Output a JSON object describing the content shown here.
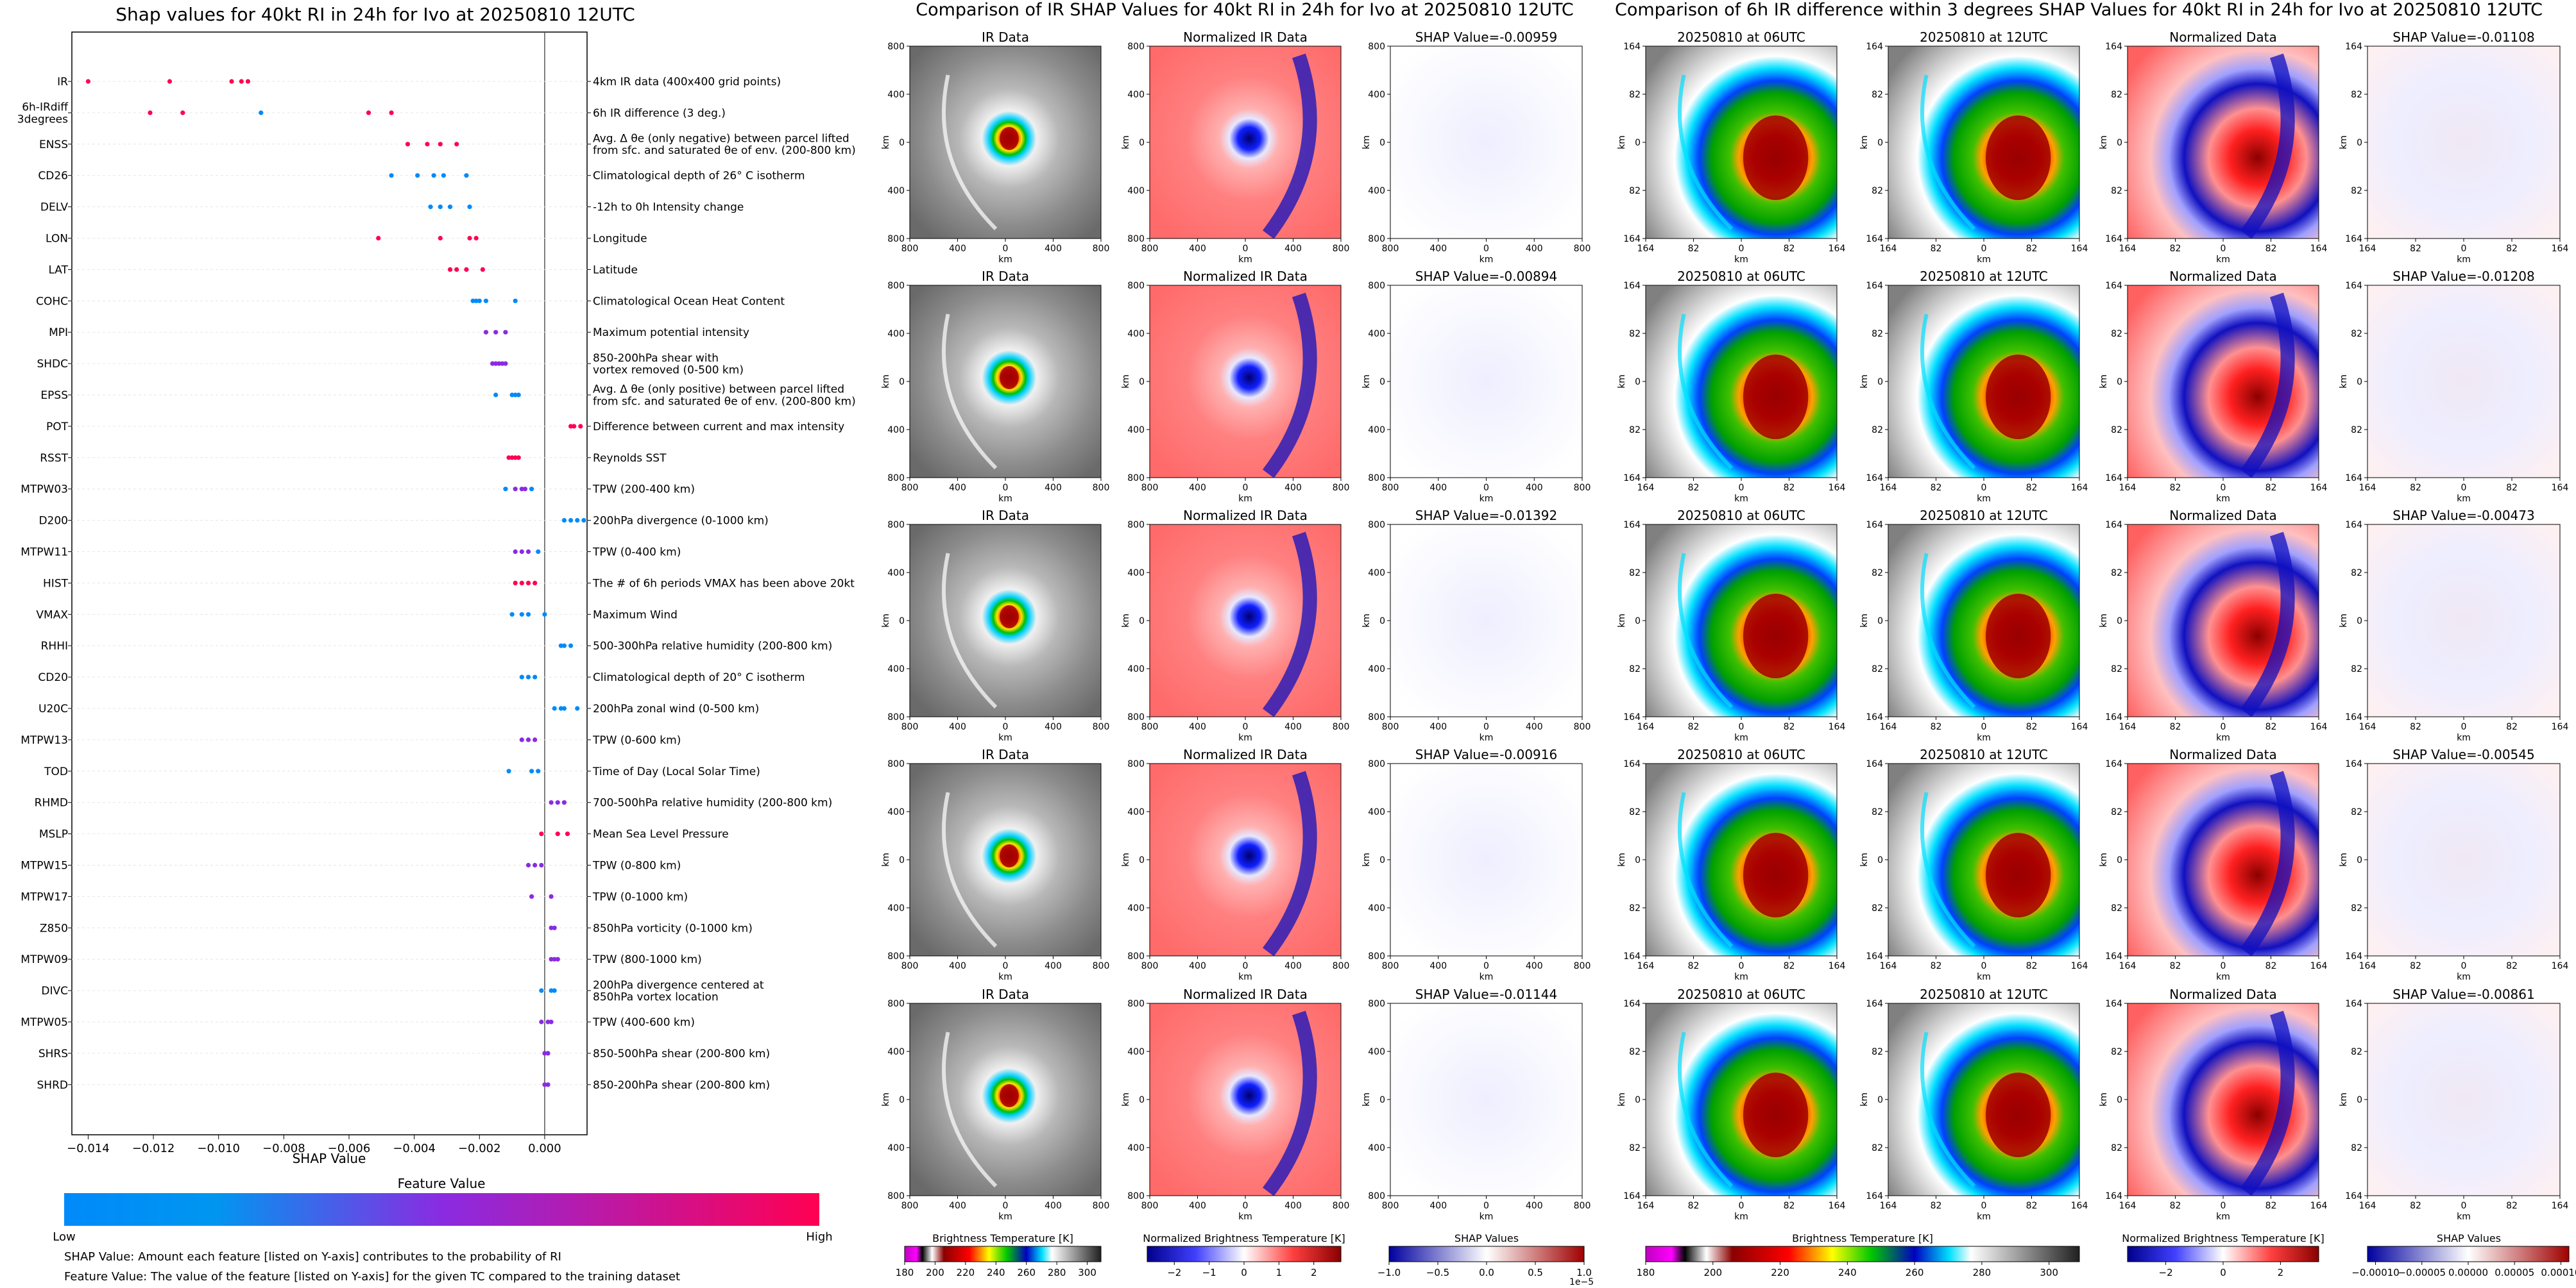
{
  "left_panel": {
    "title": "Shap values for 40kt RI in 24h for Ivo at 20250810 12UTC",
    "xlabel": "SHAP Value",
    "x_ticks": [
      "-0.014",
      "-0.012",
      "-0.010",
      "-0.008",
      "-0.006",
      "-0.004",
      "-0.002",
      "0.000"
    ],
    "colorbar_title": "Feature Value",
    "colorbar_low": "Low",
    "colorbar_high": "High",
    "footnote_1": "SHAP Value: Amount each feature [listed on Y-axis] contributes to the probability of RI",
    "footnote_2": "Feature Value: The value of the feature [listed on Y-axis] for the given TC compared to the training dataset",
    "colors": {
      "low": "#008afa",
      "mid": "#8a2be2",
      "high": "#ff0052"
    }
  },
  "ir_section": {
    "title": "Comparison of IR SHAP Values for 40kt RI in 24h for Ivo at 20250810 12UTC",
    "col_titles": [
      "IR Data",
      "Normalized IR Data"
    ],
    "shap_titles": [
      "SHAP Value=-0.00959",
      "SHAP Value=-0.00894",
      "SHAP Value=-0.01392",
      "SHAP Value=-0.00916",
      "SHAP Value=-0.01144"
    ],
    "ticks": [
      "800",
      "400",
      "0",
      "400",
      "800"
    ],
    "axis_label": "km",
    "cbar_labels": [
      "Brightness Temperature [K]",
      "Normalized Brightness Temperature [K]",
      "SHAP Values"
    ],
    "cbar1_ticks": [
      "180",
      "200",
      "220",
      "240",
      "260",
      "280",
      "300"
    ],
    "cbar2_ticks": [
      "−2",
      "−1",
      "0",
      "1",
      "2"
    ],
    "cbar3_ticks": [
      "−1.0",
      "−0.5",
      "0.0",
      "0.5",
      "1.0"
    ],
    "cbar3_exp": "1e−5"
  },
  "diff_section": {
    "title": "Comparison of 6h IR difference within 3 degrees SHAP Values for 40kt RI in 24h for Ivo at 20250810 12UTC",
    "col_titles": [
      "20250810 at 06UTC",
      "20250810 at 12UTC",
      "Normalized Data"
    ],
    "shap_titles": [
      "SHAP Value=-0.01108",
      "SHAP Value=-0.01208",
      "SHAP Value=-0.00473",
      "SHAP Value=-0.00545",
      "SHAP Value=-0.00861"
    ],
    "ticks": [
      "164",
      "82",
      "0",
      "82",
      "164"
    ],
    "axis_label": "km",
    "cbar_labels": [
      "Brightness Temperature [K]",
      "Normalized Brightness Temperature [K]",
      "SHAP Values"
    ],
    "cbar1_ticks": [
      "180",
      "200",
      "220",
      "240",
      "260",
      "280",
      "300"
    ],
    "cbar2_ticks": [
      "−2",
      "0",
      "2"
    ],
    "cbar3_ticks": [
      "−0.00010",
      "−0.00005",
      "0.00000",
      "0.00005",
      "0.00010"
    ]
  },
  "chart_data": {
    "type": "scatter",
    "title": "Shap values for 40kt RI in 24h for Ivo at 20250810 12UTC",
    "xlabel": "SHAP Value",
    "xlim": [
      -0.0145,
      0.0013
    ],
    "series": [
      {
        "feature": "IR",
        "description": "4km IR data (400x400 grid points)",
        "points": [
          [
            -0.014,
            "high"
          ],
          [
            -0.0115,
            "high"
          ],
          [
            -0.0096,
            "high"
          ],
          [
            -0.0093,
            "high"
          ],
          [
            -0.0091,
            "high"
          ]
        ]
      },
      {
        "feature": "6h-IRdiff\n3degrees",
        "description": "6h IR difference (3 deg.)",
        "points": [
          [
            -0.0121,
            "high"
          ],
          [
            -0.0111,
            "high"
          ],
          [
            -0.0087,
            "low"
          ],
          [
            -0.0054,
            "high"
          ],
          [
            -0.0047,
            "high"
          ]
        ]
      },
      {
        "feature": "ENSS",
        "description": "Avg. Δ θe (only negative) between parcel lifted\nfrom sfc. and saturated θe of env. (200-800 km)",
        "points": [
          [
            -0.0042,
            "high"
          ],
          [
            -0.0036,
            "high"
          ],
          [
            -0.0032,
            "high"
          ],
          [
            -0.0027,
            "high"
          ]
        ]
      },
      {
        "feature": "CD26",
        "description": "Climatological depth of 26° C isotherm",
        "points": [
          [
            -0.0047,
            "low"
          ],
          [
            -0.0039,
            "low"
          ],
          [
            -0.0034,
            "low"
          ],
          [
            -0.0031,
            "low"
          ],
          [
            -0.0024,
            "low"
          ]
        ]
      },
      {
        "feature": "DELV",
        "description": "-12h to 0h Intensity change",
        "points": [
          [
            -0.0035,
            "low"
          ],
          [
            -0.0032,
            "low"
          ],
          [
            -0.0029,
            "low"
          ],
          [
            -0.0023,
            "low"
          ]
        ]
      },
      {
        "feature": "LON",
        "description": "Longitude",
        "points": [
          [
            -0.0051,
            "high"
          ],
          [
            -0.0032,
            "high"
          ],
          [
            -0.0023,
            "high"
          ],
          [
            -0.0021,
            "high"
          ]
        ]
      },
      {
        "feature": "LAT",
        "description": "Latitude",
        "points": [
          [
            -0.0029,
            "high"
          ],
          [
            -0.0027,
            "high"
          ],
          [
            -0.0024,
            "high"
          ],
          [
            -0.0019,
            "high"
          ]
        ]
      },
      {
        "feature": "COHC",
        "description": "Climatological Ocean Heat Content",
        "points": [
          [
            -0.0022,
            "low"
          ],
          [
            -0.0021,
            "low"
          ],
          [
            -0.002,
            "low"
          ],
          [
            -0.0018,
            "low"
          ],
          [
            -0.0009,
            "low"
          ]
        ]
      },
      {
        "feature": "MPI",
        "description": "Maximum potential intensity",
        "points": [
          [
            -0.0018,
            "mid"
          ],
          [
            -0.0015,
            "mid"
          ],
          [
            -0.0012,
            "mid"
          ]
        ]
      },
      {
        "feature": "SHDC",
        "description": "850-200hPa shear with\nvortex removed (0-500 km)",
        "points": [
          [
            -0.0016,
            "mid"
          ],
          [
            -0.0015,
            "mid"
          ],
          [
            -0.0014,
            "mid"
          ],
          [
            -0.0013,
            "mid"
          ],
          [
            -0.0012,
            "mid"
          ]
        ]
      },
      {
        "feature": "EPSS",
        "description": "Avg. Δ θe (only positive) between parcel lifted\nfrom sfc. and saturated θe of env. (200-800 km)",
        "points": [
          [
            -0.0015,
            "low"
          ],
          [
            -0.001,
            "low"
          ],
          [
            -0.0009,
            "low"
          ],
          [
            -0.0008,
            "low"
          ]
        ]
      },
      {
        "feature": "POT",
        "description": "Difference between current and max intensity",
        "points": [
          [
            0.0008,
            "high"
          ],
          [
            0.0009,
            "high"
          ],
          [
            0.0011,
            "high"
          ]
        ]
      },
      {
        "feature": "RSST",
        "description": "Reynolds SST",
        "points": [
          [
            -0.0011,
            "high"
          ],
          [
            -0.001,
            "high"
          ],
          [
            -0.0009,
            "high"
          ],
          [
            -0.0008,
            "high"
          ]
        ]
      },
      {
        "feature": "MTPW03",
        "description": "TPW (200-400 km)",
        "points": [
          [
            -0.0012,
            "low"
          ],
          [
            -0.0009,
            "mid"
          ],
          [
            -0.0007,
            "mid"
          ],
          [
            -0.0006,
            "mid"
          ],
          [
            -0.0004,
            "low"
          ]
        ]
      },
      {
        "feature": "D200",
        "description": "200hPa divergence (0-1000 km)",
        "points": [
          [
            0.0006,
            "low"
          ],
          [
            0.0008,
            "low"
          ],
          [
            0.001,
            "low"
          ],
          [
            0.0012,
            "low"
          ]
        ]
      },
      {
        "feature": "MTPW11",
        "description": "TPW (0-400 km)",
        "points": [
          [
            -0.0009,
            "mid"
          ],
          [
            -0.0007,
            "mid"
          ],
          [
            -0.0005,
            "mid"
          ],
          [
            -0.0002,
            "low"
          ]
        ]
      },
      {
        "feature": "HIST",
        "description": "The # of 6h periods VMAX has been above 20kt",
        "points": [
          [
            -0.0009,
            "high"
          ],
          [
            -0.0007,
            "high"
          ],
          [
            -0.0005,
            "high"
          ],
          [
            -0.0003,
            "high"
          ]
        ]
      },
      {
        "feature": "VMAX",
        "description": "Maximum Wind",
        "points": [
          [
            -0.001,
            "low"
          ],
          [
            -0.0007,
            "low"
          ],
          [
            -0.0005,
            "low"
          ],
          [
            0.0,
            "low"
          ]
        ]
      },
      {
        "feature": "RHHI",
        "description": "500-300hPa relative humidity (200-800 km)",
        "points": [
          [
            0.0005,
            "low"
          ],
          [
            0.0006,
            "low"
          ],
          [
            0.0008,
            "low"
          ]
        ]
      },
      {
        "feature": "CD20",
        "description": "Climatological depth of 20° C isotherm",
        "points": [
          [
            -0.0007,
            "low"
          ],
          [
            -0.0005,
            "low"
          ],
          [
            -0.0003,
            "low"
          ]
        ]
      },
      {
        "feature": "U20C",
        "description": "200hPa zonal wind (0-500 km)",
        "points": [
          [
            0.0003,
            "low"
          ],
          [
            0.0005,
            "low"
          ],
          [
            0.0006,
            "low"
          ],
          [
            0.001,
            "low"
          ]
        ]
      },
      {
        "feature": "MTPW13",
        "description": "TPW (0-600 km)",
        "points": [
          [
            -0.0007,
            "mid"
          ],
          [
            -0.0005,
            "mid"
          ],
          [
            -0.0003,
            "mid"
          ]
        ]
      },
      {
        "feature": "TOD",
        "description": "Time of Day (Local Solar Time)",
        "points": [
          [
            -0.0011,
            "low"
          ],
          [
            -0.0004,
            "low"
          ],
          [
            -0.0002,
            "low"
          ]
        ]
      },
      {
        "feature": "RHMD",
        "description": "700-500hPa relative humidity (200-800 km)",
        "points": [
          [
            0.0002,
            "mid"
          ],
          [
            0.0004,
            "mid"
          ],
          [
            0.0006,
            "mid"
          ]
        ]
      },
      {
        "feature": "MSLP",
        "description": "Mean Sea Level Pressure",
        "points": [
          [
            -0.0001,
            "high"
          ],
          [
            0.0004,
            "high"
          ],
          [
            0.0007,
            "high"
          ]
        ]
      },
      {
        "feature": "MTPW15",
        "description": "TPW (0-800 km)",
        "points": [
          [
            -0.0005,
            "mid"
          ],
          [
            -0.0003,
            "mid"
          ],
          [
            -0.0001,
            "mid"
          ]
        ]
      },
      {
        "feature": "MTPW17",
        "description": "TPW (0-1000 km)",
        "points": [
          [
            -0.0004,
            "mid"
          ],
          [
            0.0002,
            "mid"
          ]
        ]
      },
      {
        "feature": "Z850",
        "description": "850hPa vorticity (0-1000 km)",
        "points": [
          [
            0.0002,
            "mid"
          ],
          [
            0.0003,
            "mid"
          ]
        ]
      },
      {
        "feature": "MTPW09",
        "description": "TPW (800-1000 km)",
        "points": [
          [
            0.0002,
            "mid"
          ],
          [
            0.0003,
            "mid"
          ],
          [
            0.0004,
            "mid"
          ]
        ]
      },
      {
        "feature": "DIVC",
        "description": "200hPa divergence centered at\n850hPa vortex location",
        "points": [
          [
            -0.0001,
            "low"
          ],
          [
            0.0002,
            "low"
          ],
          [
            0.0003,
            "low"
          ]
        ]
      },
      {
        "feature": "MTPW05",
        "description": "TPW (400-600 km)",
        "points": [
          [
            -0.0001,
            "mid"
          ],
          [
            0.0001,
            "mid"
          ],
          [
            0.0002,
            "mid"
          ]
        ]
      },
      {
        "feature": "SHRS",
        "description": "850-500hPa shear (200-800 km)",
        "points": [
          [
            0.0,
            "mid"
          ],
          [
            0.0001,
            "mid"
          ]
        ]
      },
      {
        "feature": "SHRD",
        "description": "850-200hPa shear (200-800 km)",
        "points": [
          [
            0.0,
            "mid"
          ],
          [
            0.0001,
            "mid"
          ]
        ]
      }
    ]
  }
}
